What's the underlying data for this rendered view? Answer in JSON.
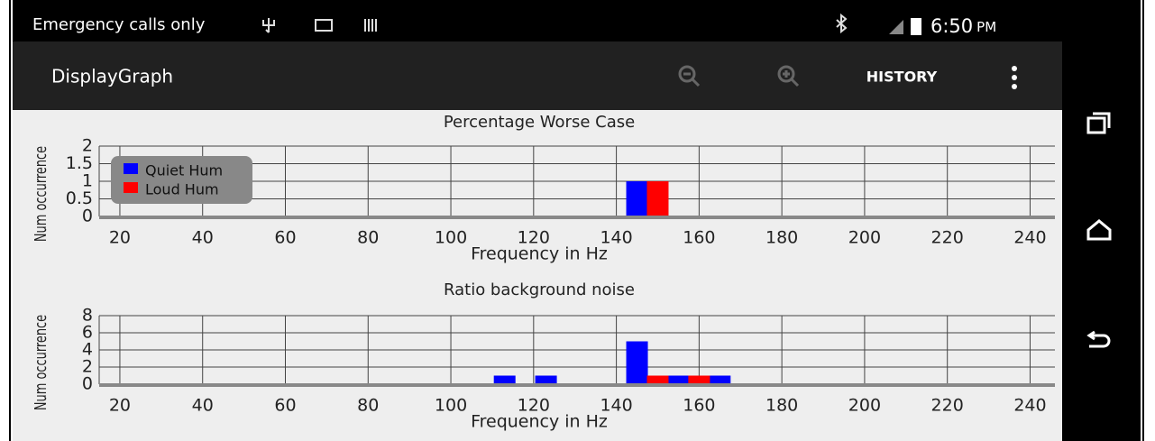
{
  "status_bar": {
    "carrier": "Emergency calls only",
    "time": "6:50",
    "time_suffix": "PM"
  },
  "app_bar": {
    "title": "DisplayGraph",
    "action": "HISTORY"
  },
  "chart_data": [
    {
      "type": "bar",
      "title": "Percentage Worse Case",
      "x_label": "Frequency in Hz",
      "y_label": "Num occurrence",
      "xlim": [
        15,
        246
      ],
      "xticks": [
        20,
        40,
        60,
        80,
        100,
        120,
        140,
        160,
        180,
        200,
        220,
        240
      ],
      "ylim": [
        0,
        2
      ],
      "yticks": [
        0,
        0.5,
        1,
        1.5,
        2
      ],
      "grid": true,
      "legend": "top-left",
      "series": [
        {
          "name": "Quiet Hum",
          "color": "#0000ff",
          "x": [
            145
          ],
          "values": [
            1
          ]
        },
        {
          "name": "Loud Hum",
          "color": "#ff0000",
          "x": [
            150
          ],
          "values": [
            1
          ]
        }
      ]
    },
    {
      "type": "bar",
      "title": "Ratio background noise",
      "x_label": "Frequency in Hz",
      "y_label": "Num occurrence",
      "xlim": [
        15,
        246
      ],
      "xticks": [
        20,
        40,
        60,
        80,
        100,
        120,
        140,
        160,
        180,
        200,
        220,
        240
      ],
      "ylim": [
        0,
        8
      ],
      "yticks": [
        0,
        2,
        4,
        6,
        8
      ],
      "grid": true,
      "series": [
        {
          "color": "#0000ff",
          "x": [
            113,
            123,
            145,
            155,
            165
          ],
          "values": [
            1,
            1,
            5,
            1,
            1
          ]
        },
        {
          "color": "#ff0000",
          "x": [
            150,
            160
          ],
          "values": [
            1,
            1
          ]
        }
      ]
    }
  ]
}
